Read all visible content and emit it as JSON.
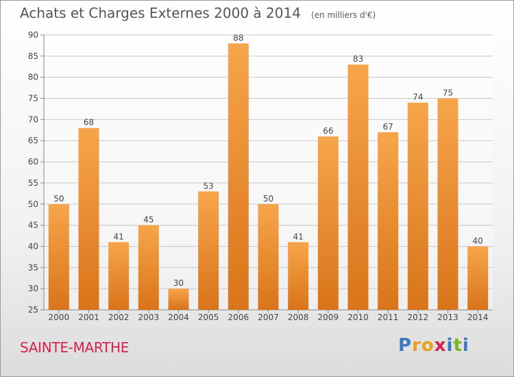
{
  "header": {
    "title": "Achats et Charges Externes 2000 à 2014",
    "unit": "(en milliers d'€)"
  },
  "footer": {
    "commune": "SAINTE-MARTHE",
    "brand_letters": [
      {
        "ch": "P",
        "color": "#3a78c2"
      },
      {
        "ch": "r",
        "color": "#e8a21a"
      },
      {
        "ch": "o",
        "color": "#e8a21a"
      },
      {
        "ch": "x",
        "color": "#d2224f"
      },
      {
        "ch": "i",
        "color": "#3a78c2"
      },
      {
        "ch": "t",
        "color": "#7ab51d"
      },
      {
        "ch": "i",
        "color": "#3a78c2"
      }
    ]
  },
  "chart_data": {
    "type": "bar",
    "title": "Achats et Charges Externes 2000 à 2014",
    "subtitle": "(en milliers d'€)",
    "categories": [
      "2000",
      "2001",
      "2002",
      "2003",
      "2004",
      "2005",
      "2006",
      "2007",
      "2008",
      "2009",
      "2010",
      "2011",
      "2012",
      "2013",
      "2014"
    ],
    "values": [
      50,
      68,
      41,
      45,
      30,
      53,
      88,
      50,
      41,
      66,
      83,
      67,
      74,
      75,
      40
    ],
    "ylim": [
      25,
      90
    ],
    "yticks": [
      25,
      30,
      35,
      40,
      45,
      50,
      55,
      60,
      65,
      70,
      75,
      80,
      85,
      90
    ],
    "grid": true,
    "data_labels": true,
    "colors": {
      "bar_light": "#f7a54a",
      "bar_dark": "#d9741a",
      "grid": "#c8c8c8",
      "axis": "#888888",
      "label": "#444444"
    }
  }
}
